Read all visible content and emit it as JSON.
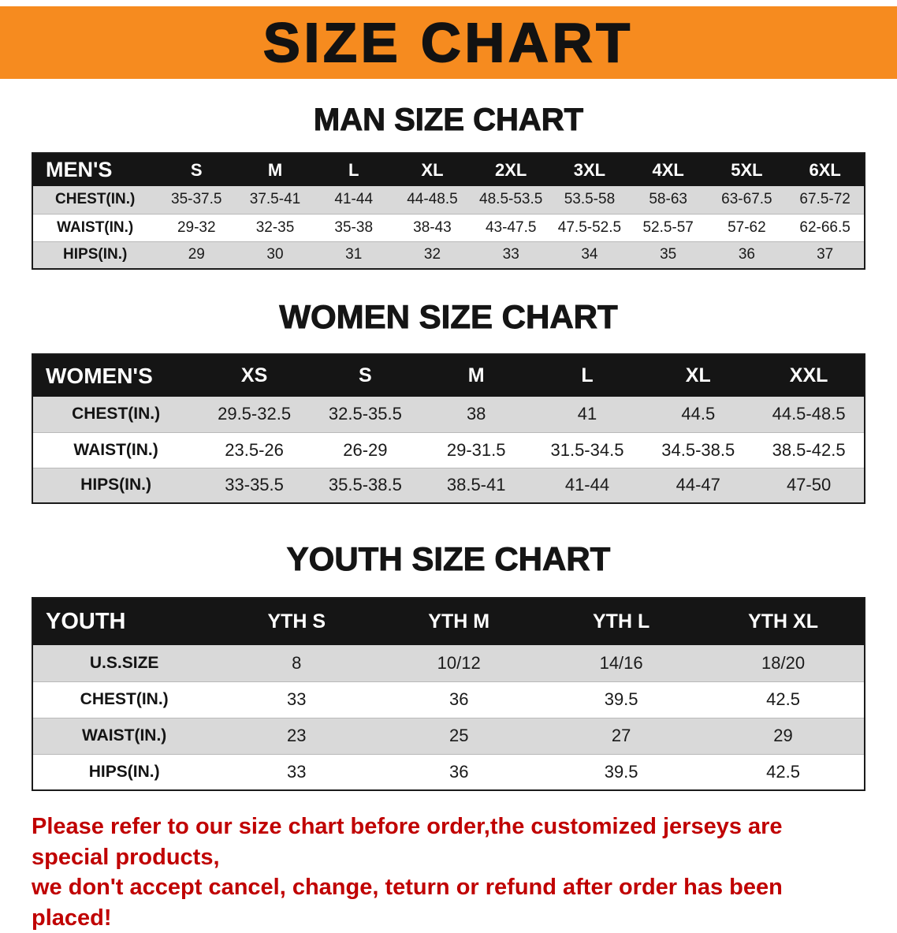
{
  "colors": {
    "banner_orange": "#f68b1f",
    "table_header_black": "#151515",
    "row_gray": "#d9d9d9",
    "disclaimer_red": "#c00000"
  },
  "banner": {
    "title": "SIZE CHART"
  },
  "men_section": {
    "heading": "MAN SIZE CHART"
  },
  "women_section": {
    "heading": "WOMEN SIZE CHART"
  },
  "youth_section": {
    "heading": "YOUTH SIZE CHART"
  },
  "men_table": {
    "header": [
      "MEN'S",
      "S",
      "M",
      "L",
      "XL",
      "2XL",
      "3XL",
      "4XL",
      "5XL",
      "6XL"
    ],
    "rows": [
      [
        "CHEST(IN.)",
        "35-37.5",
        "37.5-41",
        "41-44",
        "44-48.5",
        "48.5-53.5",
        "53.5-58",
        "58-63",
        "63-67.5",
        "67.5-72"
      ],
      [
        "WAIST(IN.)",
        "29-32",
        "32-35",
        "35-38",
        "38-43",
        "43-47.5",
        "47.5-52.5",
        "52.5-57",
        "57-62",
        "62-66.5"
      ],
      [
        "HIPS(IN.)",
        "29",
        "30",
        "31",
        "32",
        "33",
        "34",
        "35",
        "36",
        "37"
      ]
    ]
  },
  "women_table": {
    "header": [
      "WOMEN'S",
      "XS",
      "S",
      "M",
      "L",
      "XL",
      "XXL"
    ],
    "rows": [
      [
        "CHEST(IN.)",
        "29.5-32.5",
        "32.5-35.5",
        "38",
        "41",
        "44.5",
        "44.5-48.5"
      ],
      [
        "WAIST(IN.)",
        "23.5-26",
        "26-29",
        "29-31.5",
        "31.5-34.5",
        "34.5-38.5",
        "38.5-42.5"
      ],
      [
        "HIPS(IN.)",
        "33-35.5",
        "35.5-38.5",
        "38.5-41",
        "41-44",
        "44-47",
        "47-50"
      ]
    ]
  },
  "youth_table": {
    "header": [
      "YOUTH",
      "YTH S",
      "YTH M",
      "YTH L",
      "YTH XL"
    ],
    "rows": [
      [
        "U.S.SIZE",
        "8",
        "10/12",
        "14/16",
        "18/20"
      ],
      [
        "CHEST(IN.)",
        "33",
        "36",
        "39.5",
        "42.5"
      ],
      [
        "WAIST(IN.)",
        "23",
        "25",
        "27",
        "29"
      ],
      [
        "HIPS(IN.)",
        "33",
        "36",
        "39.5",
        "42.5"
      ]
    ]
  },
  "footer": {
    "line1": "Please refer to our size chart before order,the customized jerseys are special products,",
    "line2": "we don't accept cancel, change, teturn or refund after order has been placed!"
  }
}
